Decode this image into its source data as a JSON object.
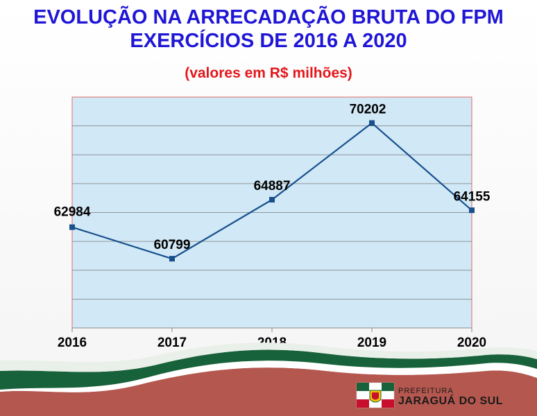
{
  "colors": {
    "title": "#1f16d6",
    "subtitle": "#e3171b",
    "plot_bg": "#d1e8f6",
    "plot_border": "#e06a6a",
    "line": "#17508d",
    "grid": "#7a7a7a",
    "wave_green": "#17623a",
    "wave_red": "#b4574f",
    "brand_text": "#1a1a1a"
  },
  "header": {
    "title_line1": "EVOLUÇÃO NA ARRECADAÇÃO BRUTA DO FPM",
    "title_line2": "EXERCÍCIOS DE 2016 A 2020",
    "subtitle": "(valores em R$ milhões)"
  },
  "chart_data": {
    "type": "line",
    "categories": [
      "2016",
      "2017",
      "2018",
      "2019",
      "2020"
    ],
    "values": [
      62984,
      60799,
      64887,
      70202,
      64155
    ],
    "data_labels": [
      "62984",
      "60799",
      "64887",
      "70202",
      "64155"
    ],
    "ylim": [
      56000,
      72000
    ],
    "grid": true,
    "gridline_step": 2000,
    "marker": "square"
  },
  "logo": {
    "line1": "PREFEITURA",
    "line2": "JARAGUÁ DO SUL",
    "icon": "municipal-flag-icon"
  }
}
